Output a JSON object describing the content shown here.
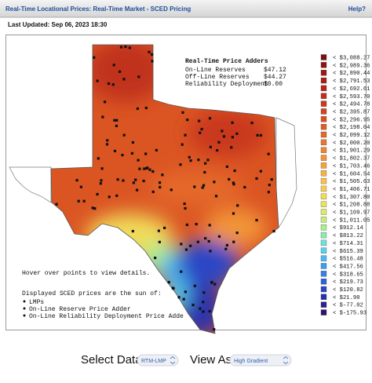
{
  "header": {
    "title": "Real-Time Locational Prices: Real-Time Market - SCED Pricing",
    "help": "Help?"
  },
  "last_updated": "Last Updated: Sep 06, 2023 18:30",
  "price_adders": {
    "title": "Real-Time Price Adders",
    "rows": [
      {
        "label": "On-Line Reserves",
        "value": "$47.12"
      },
      {
        "label": "Off-Line Reserves",
        "value": "$44.27"
      },
      {
        "label": "Reliability Deployment",
        "value": "$0.00"
      }
    ]
  },
  "legend": [
    {
      "label": "< $3,088.27",
      "color": "#7a1010"
    },
    {
      "label": "< $2,989.36",
      "color": "#8b1414"
    },
    {
      "label": "< $2,890.44",
      "color": "#9a1a16"
    },
    {
      "label": "< $2,791.53",
      "color": "#a81f18"
    },
    {
      "label": "< $2,692.61",
      "color": "#b5261a"
    },
    {
      "label": "< $2,593.70",
      "color": "#c02f1c"
    },
    {
      "label": "< $2,494.78",
      "color": "#c9391e"
    },
    {
      "label": "< $2,395.87",
      "color": "#d24420"
    },
    {
      "label": "< $2,296.95",
      "color": "#da5023"
    },
    {
      "label": "< $2,198.04",
      "color": "#e05c26"
    },
    {
      "label": "< $2,099.12",
      "color": "#e5692a"
    },
    {
      "label": "< $2,000.20",
      "color": "#ea772e"
    },
    {
      "label": "< $1,901.29",
      "color": "#ee8532"
    },
    {
      "label": "< $1,802.37",
      "color": "#f29437"
    },
    {
      "label": "< $1,703.46",
      "color": "#f5a33c"
    },
    {
      "label": "< $1,604.54",
      "color": "#f7b242"
    },
    {
      "label": "< $1,505.63",
      "color": "#f8c148"
    },
    {
      "label": "< $1,406.71",
      "color": "#f6cf4f"
    },
    {
      "label": "< $1,307.80",
      "color": "#f1db58"
    },
    {
      "label": "< $1,208.88",
      "color": "#e8e461"
    },
    {
      "label": "< $1,109.97",
      "color": "#d9ea6c"
    },
    {
      "label": "< $1,011.05",
      "color": "#c4ee7a"
    },
    {
      "label": "< $912.14",
      "color": "#a9ef8c"
    },
    {
      "label": "< $813.22",
      "color": "#8cecb0"
    },
    {
      "label": "< $714.31",
      "color": "#6fe2d6"
    },
    {
      "label": "< $615.39",
      "color": "#5ad0ec"
    },
    {
      "label": "< $516.48",
      "color": "#4cb8f0"
    },
    {
      "label": "< $417.56",
      "color": "#409ced"
    },
    {
      "label": "< $318.65",
      "color": "#377fe5"
    },
    {
      "label": "< $219.73",
      "color": "#3062d8"
    },
    {
      "label": "< $120.82",
      "color": "#2b47c6"
    },
    {
      "label": "< $21.90",
      "color": "#2a30ad"
    },
    {
      "label": "< $-77.02",
      "color": "#2c2090"
    },
    {
      "label": "< $-175.93",
      "color": "#2b1570"
    }
  ],
  "notes": {
    "hover": "Hover over points to view details.",
    "sum_title": "Displayed SCED prices are the sun of:",
    "sum_items": [
      "LMPs",
      "On-Line Reserve Price Adder",
      "On-Line Reliability Deployment Price Adde"
    ]
  },
  "controls": {
    "select_data_label": "Select Data",
    "select_data_value": "RTM-LMP",
    "view_as_label": "View As",
    "view_as_value": "High Gradient"
  }
}
